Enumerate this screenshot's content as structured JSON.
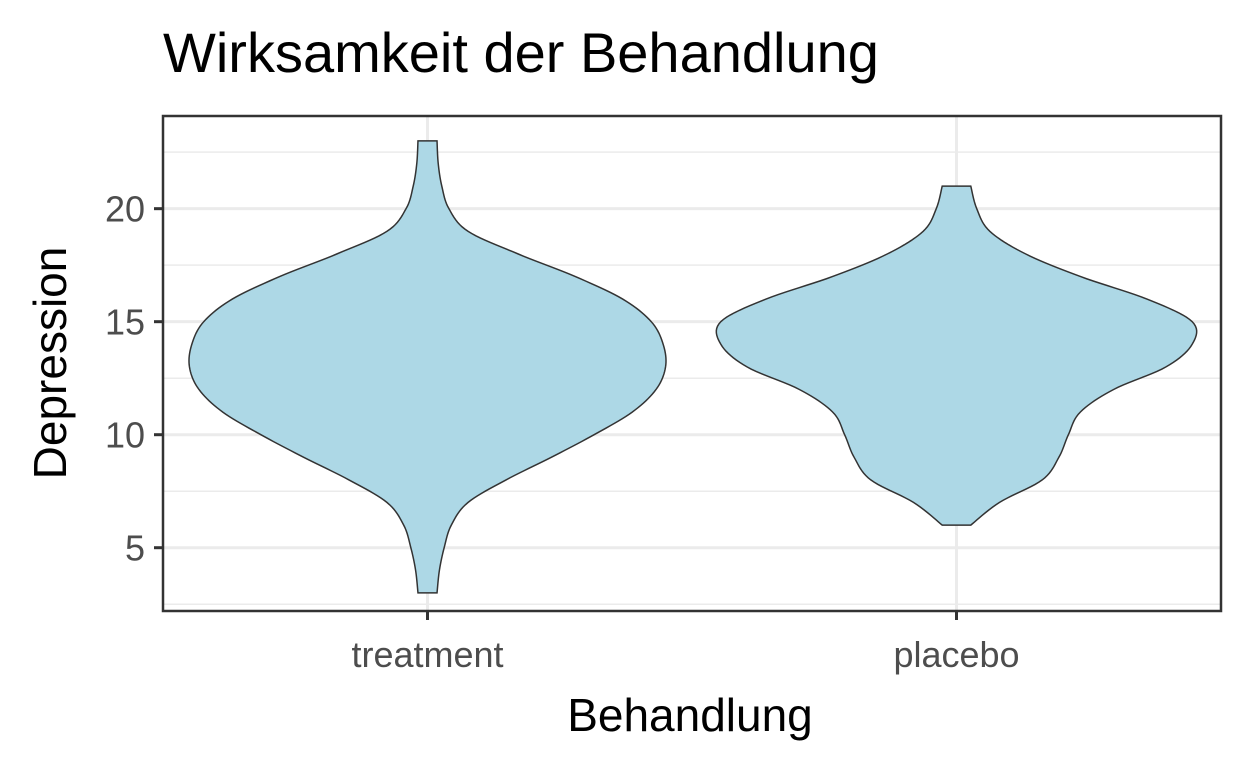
{
  "chart_data": {
    "type": "violin",
    "title": "Wirksamkeit der Behandlung",
    "xlabel": "Behandlung",
    "ylabel": "Depression",
    "categories": [
      "treatment",
      "placebo"
    ],
    "ylim": [
      2.2,
      24.1
    ],
    "yticks": [
      5,
      10,
      15,
      20
    ],
    "ytick_labels": [
      "5",
      "10",
      "15",
      "20"
    ],
    "fill_color": "#add8e6",
    "outline_color": "#333333",
    "grid": true,
    "violins": [
      {
        "category": "treatment",
        "range": [
          3,
          23
        ],
        "profile": [
          [
            3.0,
            0.04
          ],
          [
            4.0,
            0.05
          ],
          [
            5.0,
            0.07
          ],
          [
            6.0,
            0.1
          ],
          [
            7.0,
            0.17
          ],
          [
            8.0,
            0.33
          ],
          [
            9.0,
            0.52
          ],
          [
            10.0,
            0.7
          ],
          [
            11.0,
            0.86
          ],
          [
            12.0,
            0.96
          ],
          [
            13.0,
            1.0
          ],
          [
            14.0,
            0.99
          ],
          [
            15.0,
            0.94
          ],
          [
            16.0,
            0.82
          ],
          [
            17.0,
            0.62
          ],
          [
            18.0,
            0.38
          ],
          [
            19.0,
            0.17
          ],
          [
            20.0,
            0.09
          ],
          [
            21.0,
            0.06
          ],
          [
            22.0,
            0.045
          ],
          [
            23.0,
            0.04
          ]
        ]
      },
      {
        "category": "placebo",
        "range": [
          6,
          21
        ],
        "profile": [
          [
            6.0,
            0.06
          ],
          [
            7.0,
            0.18
          ],
          [
            8.0,
            0.36
          ],
          [
            9.0,
            0.43
          ],
          [
            10.0,
            0.47
          ],
          [
            11.0,
            0.52
          ],
          [
            12.0,
            0.66
          ],
          [
            13.0,
            0.88
          ],
          [
            14.0,
            0.99
          ],
          [
            15.0,
            0.99
          ],
          [
            16.0,
            0.8
          ],
          [
            17.0,
            0.52
          ],
          [
            18.0,
            0.29
          ],
          [
            19.0,
            0.14
          ],
          [
            20.0,
            0.085
          ],
          [
            21.0,
            0.06
          ]
        ]
      }
    ]
  }
}
